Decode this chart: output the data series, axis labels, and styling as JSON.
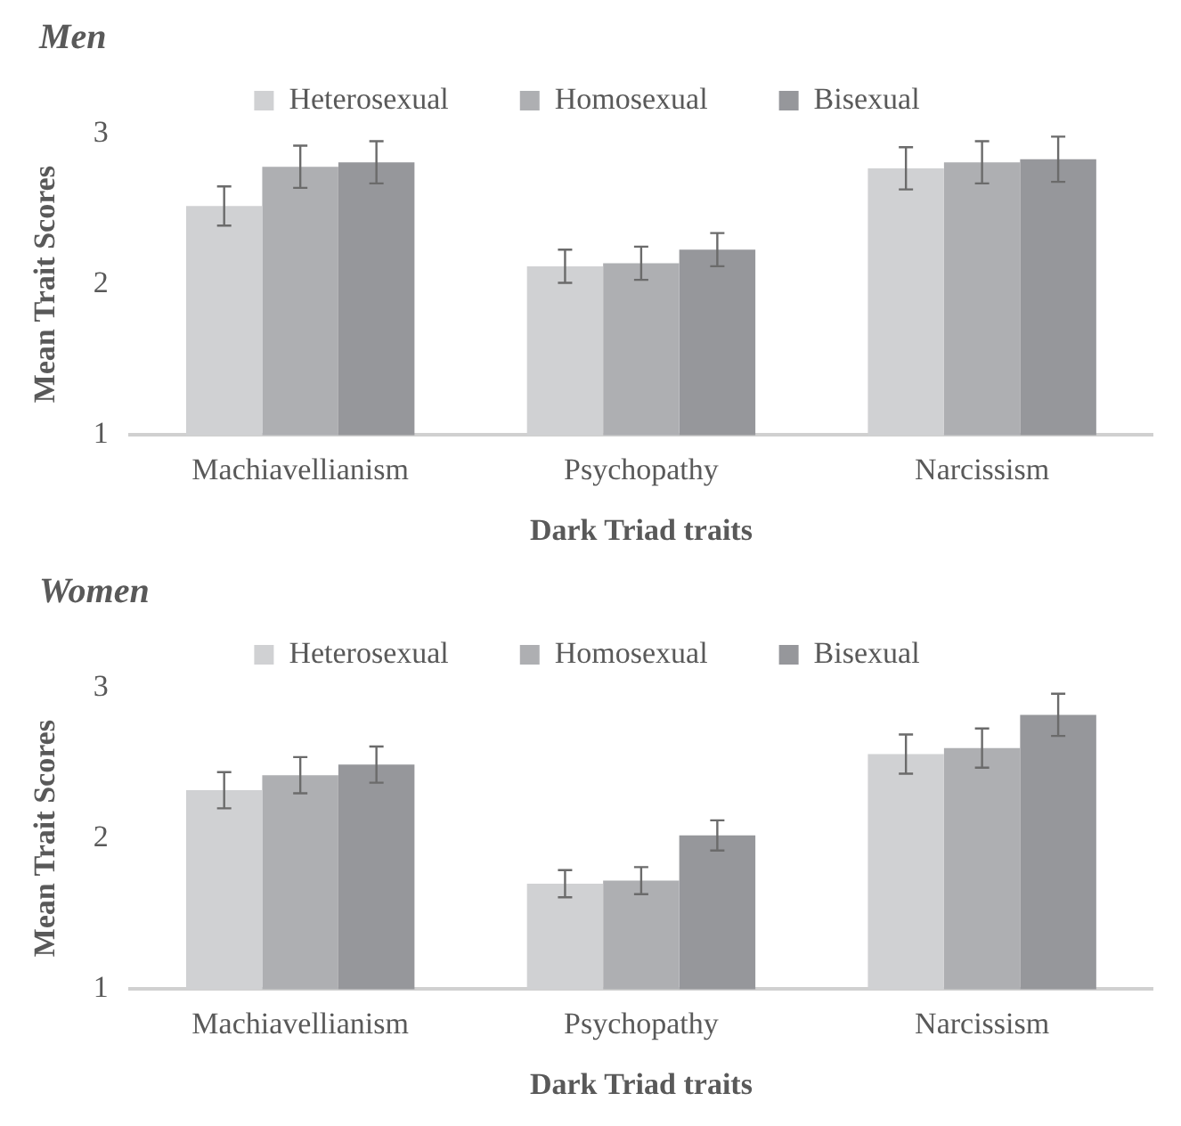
{
  "chart_data": [
    {
      "type": "bar",
      "title": "Men",
      "xlabel": "Dark Triad traits",
      "ylabel": "Mean Trait Scores",
      "categories": [
        "Machiavellianism",
        "Psychopathy",
        "Narcissism"
      ],
      "series": [
        {
          "name": "Heterosexual",
          "color": "#d0d1d3",
          "values": [
            2.52,
            2.12,
            2.77
          ],
          "errors": [
            0.13,
            0.11,
            0.14
          ]
        },
        {
          "name": "Homosexual",
          "color": "#aeafb2",
          "values": [
            2.78,
            2.14,
            2.81
          ],
          "errors": [
            0.14,
            0.11,
            0.14
          ]
        },
        {
          "name": "Bisexual",
          "color": "#96979b",
          "values": [
            2.81,
            2.23,
            2.83
          ],
          "errors": [
            0.14,
            0.11,
            0.15
          ]
        }
      ],
      "ylim": [
        1,
        3
      ],
      "yticks": [
        1,
        2,
        3
      ],
      "grid": false,
      "legend": "top"
    },
    {
      "type": "bar",
      "title": "Women",
      "xlabel": "Dark Triad traits",
      "ylabel": "Mean Trait Scores",
      "categories": [
        "Machiavellianism",
        "Psychopathy",
        "Narcissism"
      ],
      "series": [
        {
          "name": "Heterosexual",
          "color": "#d0d1d3",
          "values": [
            2.32,
            1.7,
            2.56
          ],
          "errors": [
            0.12,
            0.09,
            0.13
          ]
        },
        {
          "name": "Homosexual",
          "color": "#aeafb2",
          "values": [
            2.42,
            1.72,
            2.6
          ],
          "errors": [
            0.12,
            0.09,
            0.13
          ]
        },
        {
          "name": "Bisexual",
          "color": "#96979b",
          "values": [
            2.49,
            2.02,
            2.82
          ],
          "errors": [
            0.12,
            0.1,
            0.14
          ]
        }
      ],
      "ylim": [
        1,
        3
      ],
      "yticks": [
        1,
        2,
        3
      ],
      "grid": false,
      "legend": "top"
    }
  ]
}
